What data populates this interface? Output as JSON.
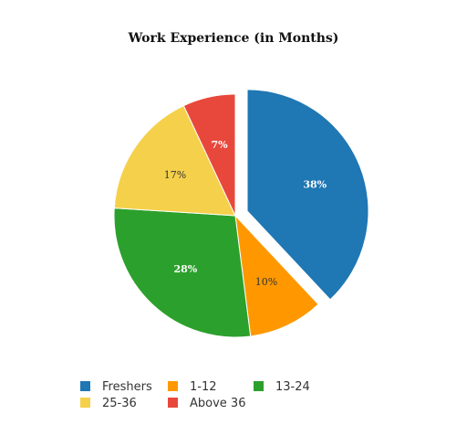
{
  "chart_data": {
    "type": "pie",
    "title": "Work Experience (in Months)",
    "categories": [
      "Freshers",
      "1-12",
      "13-24",
      "25-36",
      "Above 36"
    ],
    "values": [
      38,
      10,
      28,
      17,
      7
    ],
    "labels": [
      "38%",
      "10%",
      "28%",
      "17%",
      "7%"
    ],
    "colors": [
      "#1f77b4",
      "#ff9800",
      "#2ca02c",
      "#f5d04a",
      "#e8483c"
    ],
    "label_colors": [
      "#ffffff",
      "#333333",
      "#ffffff",
      "#333333",
      "#ffffff"
    ],
    "exploded": [
      "Freshers"
    ],
    "legend_position": "bottom-left"
  }
}
